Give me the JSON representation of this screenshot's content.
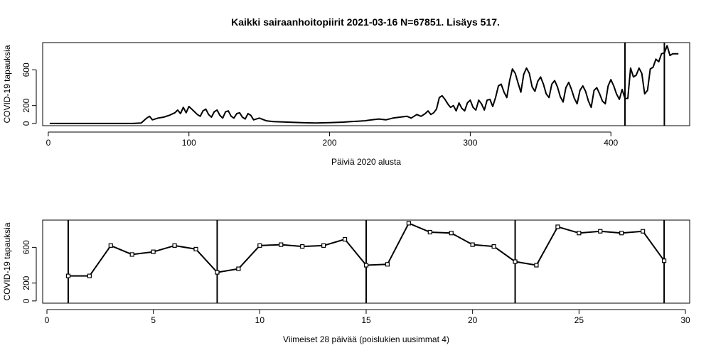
{
  "title": "Kaikki sairaanhoitopiirit 2021-03-16 N=67851. Lisäys 517.",
  "chart_data": [
    {
      "type": "line",
      "title": "Kaikki sairaanhoitopiirit 2021-03-16 N=67851. Lisäys 517.",
      "xlabel": "Päiviä 2020 alusta",
      "ylabel": "COVID-19 tapauksia",
      "xlim": [
        -4,
        456
      ],
      "ylim": [
        -25,
        905
      ],
      "xticks": [
        0,
        100,
        200,
        300,
        400
      ],
      "yticks": [
        0,
        200,
        600
      ],
      "vlines": [
        410,
        438
      ],
      "keypoints": [
        [
          1,
          0
        ],
        [
          30,
          0
        ],
        [
          60,
          0
        ],
        [
          66,
          5
        ],
        [
          70,
          60
        ],
        [
          72,
          80
        ],
        [
          74,
          40
        ],
        [
          78,
          60
        ],
        [
          82,
          70
        ],
        [
          86,
          90
        ],
        [
          90,
          120
        ],
        [
          92,
          150
        ],
        [
          94,
          110
        ],
        [
          96,
          180
        ],
        [
          98,
          120
        ],
        [
          100,
          190
        ],
        [
          102,
          160
        ],
        [
          104,
          130
        ],
        [
          106,
          100
        ],
        [
          108,
          80
        ],
        [
          110,
          140
        ],
        [
          112,
          160
        ],
        [
          114,
          100
        ],
        [
          116,
          70
        ],
        [
          118,
          130
        ],
        [
          120,
          150
        ],
        [
          122,
          90
        ],
        [
          124,
          60
        ],
        [
          126,
          130
        ],
        [
          128,
          140
        ],
        [
          130,
          80
        ],
        [
          132,
          60
        ],
        [
          134,
          110
        ],
        [
          136,
          120
        ],
        [
          138,
          70
        ],
        [
          140,
          50
        ],
        [
          142,
          110
        ],
        [
          144,
          90
        ],
        [
          146,
          40
        ],
        [
          150,
          60
        ],
        [
          155,
          30
        ],
        [
          160,
          20
        ],
        [
          170,
          15
        ],
        [
          180,
          8
        ],
        [
          190,
          5
        ],
        [
          200,
          8
        ],
        [
          210,
          15
        ],
        [
          215,
          20
        ],
        [
          220,
          25
        ],
        [
          225,
          30
        ],
        [
          230,
          40
        ],
        [
          235,
          50
        ],
        [
          240,
          40
        ],
        [
          245,
          60
        ],
        [
          250,
          70
        ],
        [
          255,
          80
        ],
        [
          258,
          60
        ],
        [
          262,
          100
        ],
        [
          265,
          80
        ],
        [
          268,
          110
        ],
        [
          270,
          140
        ],
        [
          272,
          100
        ],
        [
          274,
          120
        ],
        [
          276,
          160
        ],
        [
          278,
          290
        ],
        [
          280,
          310
        ],
        [
          282,
          270
        ],
        [
          284,
          220
        ],
        [
          286,
          180
        ],
        [
          288,
          200
        ],
        [
          290,
          140
        ],
        [
          292,
          230
        ],
        [
          294,
          170
        ],
        [
          296,
          140
        ],
        [
          298,
          230
        ],
        [
          300,
          260
        ],
        [
          302,
          180
        ],
        [
          304,
          150
        ],
        [
          306,
          260
        ],
        [
          308,
          220
        ],
        [
          310,
          150
        ],
        [
          312,
          260
        ],
        [
          314,
          270
        ],
        [
          316,
          190
        ],
        [
          318,
          290
        ],
        [
          320,
          420
        ],
        [
          322,
          440
        ],
        [
          324,
          350
        ],
        [
          326,
          290
        ],
        [
          328,
          480
        ],
        [
          330,
          610
        ],
        [
          332,
          560
        ],
        [
          334,
          450
        ],
        [
          336,
          350
        ],
        [
          338,
          550
        ],
        [
          340,
          620
        ],
        [
          342,
          560
        ],
        [
          344,
          410
        ],
        [
          346,
          360
        ],
        [
          348,
          470
        ],
        [
          350,
          520
        ],
        [
          352,
          440
        ],
        [
          354,
          330
        ],
        [
          356,
          290
        ],
        [
          358,
          440
        ],
        [
          360,
          480
        ],
        [
          362,
          410
        ],
        [
          364,
          300
        ],
        [
          366,
          240
        ],
        [
          368,
          400
        ],
        [
          370,
          460
        ],
        [
          372,
          380
        ],
        [
          374,
          280
        ],
        [
          376,
          220
        ],
        [
          378,
          370
        ],
        [
          380,
          420
        ],
        [
          382,
          360
        ],
        [
          384,
          250
        ],
        [
          386,
          180
        ],
        [
          388,
          370
        ],
        [
          390,
          400
        ],
        [
          392,
          330
        ],
        [
          394,
          250
        ],
        [
          396,
          220
        ],
        [
          398,
          420
        ],
        [
          400,
          490
        ],
        [
          402,
          420
        ],
        [
          404,
          330
        ],
        [
          406,
          270
        ],
        [
          408,
          380
        ],
        [
          410,
          280
        ],
        [
          412,
          280
        ],
        [
          414,
          620
        ],
        [
          416,
          520
        ],
        [
          418,
          540
        ],
        [
          420,
          620
        ],
        [
          422,
          560
        ],
        [
          424,
          330
        ],
        [
          426,
          370
        ],
        [
          428,
          610
        ],
        [
          430,
          630
        ],
        [
          432,
          720
        ],
        [
          434,
          690
        ],
        [
          436,
          780
        ],
        [
          438,
          790
        ],
        [
          440,
          870
        ],
        [
          442,
          760
        ],
        [
          444,
          780
        ],
        [
          446,
          780
        ],
        [
          448,
          780
        ]
      ]
    },
    {
      "type": "line",
      "xlabel": "Viimeiset 28 päivää (poislukien uusimmat 4)",
      "ylabel": "COVID-19 tapauksia",
      "xlim": [
        -0.2,
        30.2
      ],
      "ylim": [
        -25,
        905
      ],
      "xticks": [
        0,
        5,
        10,
        15,
        20,
        25,
        30
      ],
      "yticks": [
        0,
        200,
        600
      ],
      "vlines": [
        1,
        8,
        15,
        22,
        29
      ],
      "x": [
        1,
        2,
        3,
        4,
        5,
        6,
        7,
        8,
        9,
        10,
        11,
        12,
        13,
        14,
        15,
        16,
        17,
        18,
        19,
        20,
        21,
        22,
        23,
        24,
        25,
        26,
        27,
        28,
        29
      ],
      "values": [
        280,
        280,
        620,
        520,
        550,
        620,
        580,
        320,
        360,
        620,
        630,
        610,
        620,
        690,
        400,
        410,
        870,
        770,
        760,
        630,
        610,
        440,
        400,
        830,
        760,
        780,
        760,
        780,
        450
      ]
    }
  ]
}
